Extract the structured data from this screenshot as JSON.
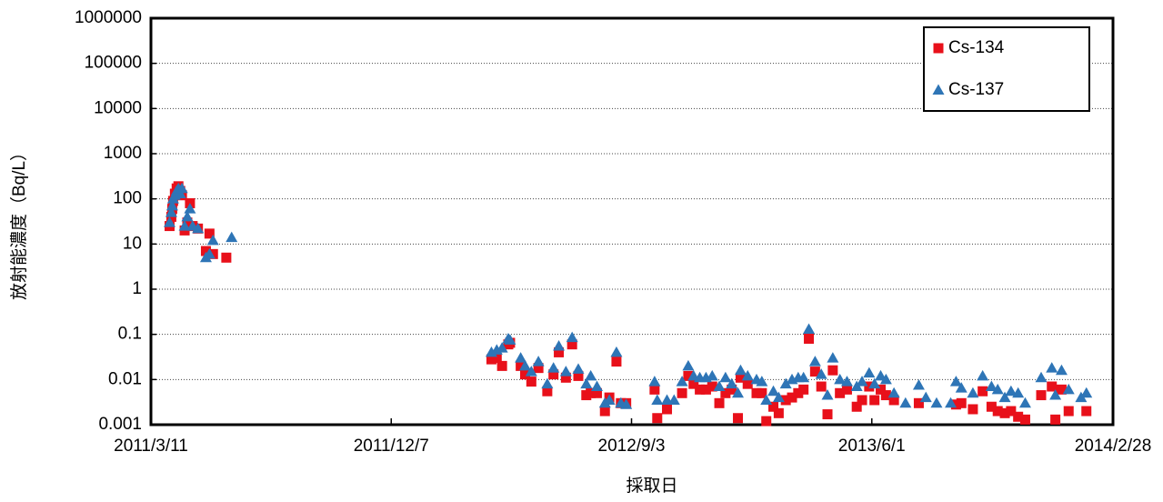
{
  "chart_data": {
    "type": "scatter",
    "x_label": "採取日",
    "y_label": "放射能濃度（Bq/L）",
    "log_y": true,
    "grid": true,
    "legend": "top-right",
    "xlim": [
      "2011/3/11",
      "2014/2/28"
    ],
    "xticks": [
      "2011/3/11",
      "2011/12/7",
      "2012/9/3",
      "2013/6/1",
      "2014/2/28"
    ],
    "ylim": [
      0.001,
      1000000
    ],
    "yticks": [
      0.001,
      0.01,
      0.1,
      1,
      10,
      100,
      1000,
      10000,
      100000,
      1000000
    ],
    "x": [
      "2011/4/1",
      "2011/4/3",
      "2011/4/4",
      "2011/4/5",
      "2011/4/7",
      "2011/4/9",
      "2011/4/11",
      "2011/4/13",
      "2011/4/15",
      "2011/4/18",
      "2011/4/21",
      "2011/4/24",
      "2011/4/27",
      "2011/5/3",
      "2011/5/12",
      "2011/5/16",
      "2011/5/20",
      "2011/6/4",
      "2011/6/10",
      "2012/3/29",
      "2012/4/4",
      "2012/4/10",
      "2012/4/17",
      "2012/4/19",
      "2012/5/1",
      "2012/5/6",
      "2012/5/13",
      "2012/5/21",
      "2012/5/31",
      "2012/6/7",
      "2012/6/13",
      "2012/6/21",
      "2012/6/28",
      "2012/7/5",
      "2012/7/14",
      "2012/7/19",
      "2012/7/26",
      "2012/8/4",
      "2012/8/9",
      "2012/8/17",
      "2012/8/22",
      "2012/8/28",
      "2012/9/29",
      "2012/10/2",
      "2012/10/13",
      "2012/10/21",
      "2012/10/30",
      "2012/11/6",
      "2012/11/12",
      "2012/11/19",
      "2012/11/26",
      "2012/12/3",
      "2012/12/11",
      "2012/12/18",
      "2012/12/25",
      "2013/1/1",
      "2013/1/4",
      "2013/1/12",
      "2013/1/22",
      "2013/1/28",
      "2013/2/2",
      "2013/2/10",
      "2013/2/16",
      "2013/2/24",
      "2013/3/3",
      "2013/3/10",
      "2013/3/16",
      "2013/3/22",
      "2013/3/29",
      "2013/4/5",
      "2013/4/12",
      "2013/4/18",
      "2013/4/26",
      "2013/5/4",
      "2013/5/15",
      "2013/5/21",
      "2013/5/29",
      "2013/6/4",
      "2013/6/11",
      "2013/6/17",
      "2013/6/26",
      "2013/7/9",
      "2013/7/24",
      "2013/8/1",
      "2013/8/13",
      "2013/8/29",
      "2013/9/4",
      "2013/9/10",
      "2013/9/23",
      "2013/10/4",
      "2013/10/14",
      "2013/10/21",
      "2013/10/29",
      "2013/11/5",
      "2013/11/13",
      "2013/11/21",
      "2013/12/9",
      "2013/12/21",
      "2013/12/25",
      "2014/1/1",
      "2014/1/9",
      "2014/1/23",
      "2014/1/29"
    ],
    "series": [
      {
        "name": "Cs-134",
        "color": "#e8101a",
        "marker": "square",
        "values": [
          25,
          40,
          60,
          90,
          130,
          170,
          190,
          150,
          120,
          20,
          30,
          80,
          25,
          22,
          7,
          17,
          6,
          5,
          null,
          0.028,
          0.03,
          0.02,
          0.06,
          0.065,
          0.02,
          0.013,
          0.009,
          0.018,
          0.0055,
          0.013,
          0.04,
          0.011,
          0.06,
          0.012,
          0.0045,
          0.005,
          0.005,
          0.002,
          0.004,
          0.025,
          0.003,
          0.003,
          0.006,
          0.0014,
          0.0022,
          null,
          0.005,
          0.012,
          0.008,
          0.006,
          0.006,
          0.007,
          0.003,
          0.005,
          0.006,
          0.0014,
          0.011,
          0.008,
          0.005,
          0.005,
          0.0012,
          0.0025,
          0.0018,
          0.0035,
          0.004,
          0.005,
          0.006,
          0.08,
          0.015,
          0.007,
          0.0017,
          0.016,
          0.005,
          0.006,
          0.0025,
          0.0035,
          0.007,
          0.0035,
          0.006,
          0.0045,
          0.0035,
          null,
          0.003,
          null,
          null,
          null,
          0.0028,
          0.003,
          0.0022,
          0.0055,
          0.0025,
          0.002,
          0.0018,
          0.002,
          0.0015,
          0.0013,
          0.0045,
          0.007,
          0.0013,
          0.006,
          0.002,
          null,
          0.002
        ]
      },
      {
        "name": "Cs-137",
        "color": "#2e75b6",
        "marker": "triangle",
        "values": [
          30,
          50,
          70,
          100,
          120,
          150,
          170,
          130,
          170,
          25,
          40,
          60,
          25,
          22,
          5,
          6,
          12,
          null,
          14,
          0.04,
          0.045,
          0.05,
          0.08,
          0.075,
          0.03,
          0.02,
          0.015,
          0.025,
          0.008,
          0.018,
          0.055,
          0.015,
          0.085,
          0.017,
          0.008,
          0.012,
          0.007,
          0.003,
          0.0035,
          0.04,
          0.003,
          0.0028,
          0.009,
          0.0035,
          0.0035,
          0.0035,
          0.009,
          0.02,
          0.012,
          0.011,
          0.011,
          0.012,
          0.007,
          0.011,
          0.008,
          0.005,
          0.016,
          0.012,
          0.01,
          0.009,
          0.0035,
          0.0055,
          0.004,
          0.008,
          0.01,
          0.011,
          0.011,
          0.13,
          0.025,
          0.013,
          0.0045,
          0.03,
          0.01,
          0.009,
          0.007,
          0.009,
          0.014,
          0.008,
          0.012,
          0.01,
          0.005,
          0.003,
          0.0075,
          0.004,
          0.003,
          0.003,
          0.009,
          0.0065,
          0.005,
          0.012,
          0.007,
          0.006,
          0.004,
          0.0055,
          0.005,
          0.003,
          0.011,
          0.018,
          0.0045,
          0.016,
          0.006,
          0.004,
          0.005
        ]
      }
    ]
  }
}
